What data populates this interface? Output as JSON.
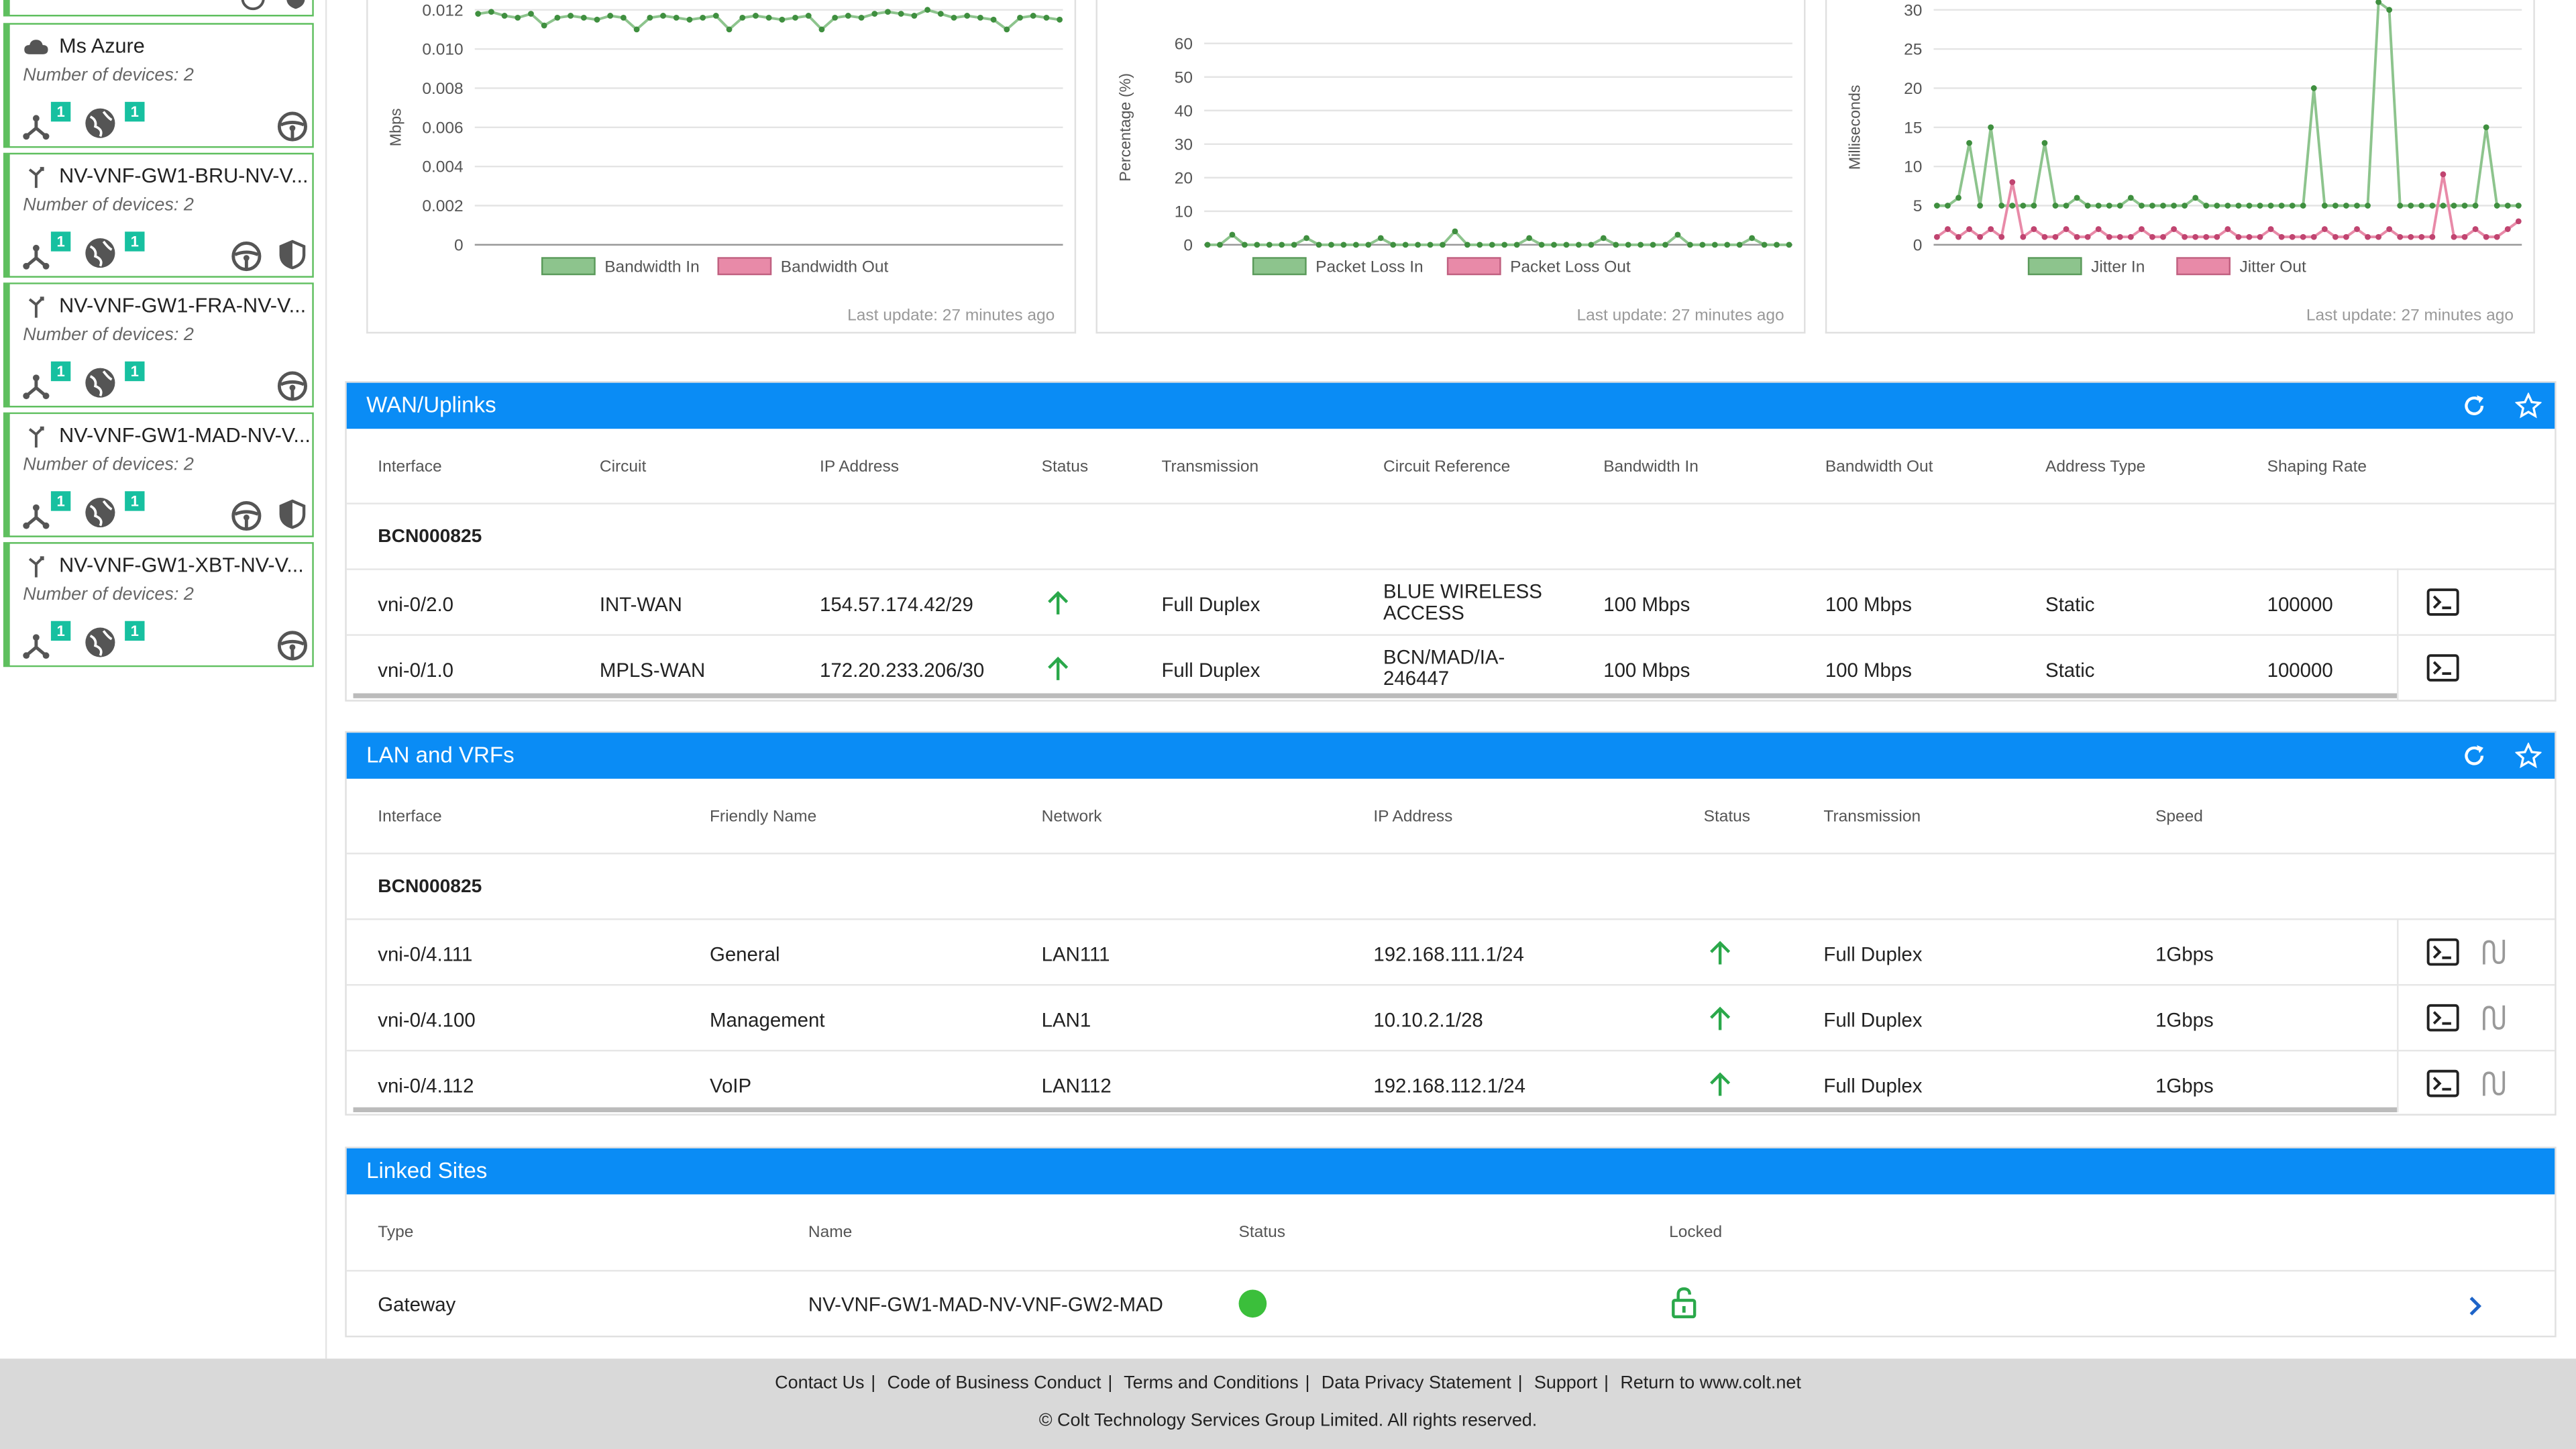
{
  "sidebar": {
    "devices_label": "Number of devices: 2",
    "badge_value": "1",
    "items": [
      {
        "name": "Ms Azure",
        "type": "cloud",
        "shield": false
      },
      {
        "name": "NV-VNF-GW1-BRU-NV-V...",
        "type": "gateway",
        "shield": true
      },
      {
        "name": "NV-VNF-GW1-FRA-NV-V...",
        "type": "gateway",
        "shield": false
      },
      {
        "name": "NV-VNF-GW1-MAD-NV-V...",
        "type": "gateway",
        "shield": true
      },
      {
        "name": "NV-VNF-GW1-XBT-NV-V...",
        "type": "gateway",
        "shield": false
      }
    ]
  },
  "charts": {
    "last_update": "Last update: 27 minutes ago",
    "colors": {
      "in": "#8dc48d",
      "out": "#e88aa8"
    }
  },
  "chart_data": [
    {
      "type": "line",
      "ylabel": "Mbps",
      "ylim": [
        0,
        0.012
      ],
      "yticks": [
        "0",
        "0.002",
        "0.004",
        "0.006",
        "0.008",
        "0.010",
        "0.012"
      ],
      "series": [
        {
          "name": "Bandwidth In",
          "values": [
            0.0118,
            0.0119,
            0.0117,
            0.0116,
            0.0118,
            0.0112,
            0.0116,
            0.0117,
            0.0116,
            0.0115,
            0.0117,
            0.0116,
            0.011,
            0.0116,
            0.0117,
            0.0116,
            0.0115,
            0.0116,
            0.0117,
            0.011,
            0.0116,
            0.0117,
            0.0116,
            0.0115,
            0.0116,
            0.0117,
            0.011,
            0.0116,
            0.0117,
            0.0116,
            0.0118,
            0.0119,
            0.0118,
            0.0117,
            0.012,
            0.0118,
            0.0116,
            0.0117,
            0.0116,
            0.0115,
            0.011,
            0.0116,
            0.0117,
            0.0116,
            0.0115
          ]
        },
        {
          "name": "Bandwidth Out",
          "values": []
        }
      ]
    },
    {
      "type": "line",
      "ylabel": "Percentage (%)",
      "ylim": [
        0,
        70
      ],
      "yticks": [
        "0",
        "10",
        "20",
        "30",
        "40",
        "50",
        "60"
      ],
      "series": [
        {
          "name": "Packet Loss In",
          "values": [
            0,
            0,
            3,
            0,
            0,
            0,
            0,
            0,
            2,
            0,
            0,
            0,
            0,
            0,
            2,
            0,
            0,
            0,
            0,
            0,
            4,
            0,
            0,
            0,
            0,
            0,
            2,
            0,
            0,
            0,
            0,
            0,
            2,
            0,
            0,
            0,
            0,
            0,
            3,
            0,
            0,
            0,
            0,
            0,
            2,
            0,
            0,
            0
          ]
        },
        {
          "name": "Packet Loss Out",
          "values": []
        }
      ]
    },
    {
      "type": "line",
      "ylabel": "Milliseconds",
      "ylim": [
        0,
        30
      ],
      "yticks": [
        "0",
        "5",
        "10",
        "15",
        "20",
        "25",
        "30"
      ],
      "series": [
        {
          "name": "Jitter In",
          "values": [
            5,
            5,
            6,
            13,
            5,
            15,
            5,
            5,
            5,
            5,
            13,
            5,
            5,
            6,
            5,
            5,
            5,
            5,
            6,
            5,
            5,
            5,
            5,
            5,
            6,
            5,
            5,
            5,
            5,
            5,
            5,
            5,
            5,
            5,
            5,
            20,
            5,
            5,
            5,
            5,
            5,
            31,
            30,
            5,
            5,
            5,
            5,
            5,
            5,
            5,
            5,
            15,
            5,
            5,
            5
          ]
        },
        {
          "name": "Jitter Out",
          "values": [
            1,
            2,
            1,
            2,
            1,
            2,
            1,
            8,
            1,
            2,
            1,
            1,
            2,
            1,
            1,
            2,
            1,
            1,
            1,
            2,
            1,
            1,
            2,
            1,
            1,
            1,
            1,
            2,
            1,
            1,
            1,
            2,
            1,
            1,
            1,
            1,
            2,
            1,
            1,
            2,
            1,
            1,
            2,
            1,
            1,
            1,
            1,
            9,
            1,
            1,
            2,
            1,
            1,
            2,
            3
          ]
        }
      ]
    }
  ],
  "wan": {
    "title": "WAN/Uplinks",
    "headers": [
      "Interface",
      "Circuit",
      "IP Address",
      "Status",
      "Transmission",
      "Circuit Reference",
      "Bandwidth In",
      "Bandwidth Out",
      "Address Type",
      "Shaping Rate"
    ],
    "group": "BCN000825",
    "rows": [
      {
        "interface": "vni-0/2.0",
        "circuit": "INT-WAN",
        "ip": "154.57.174.42/29",
        "transmission": "Full Duplex",
        "ref1": "BLUE WIRELESS",
        "ref2": "ACCESS",
        "bw_in": "100 Mbps",
        "bw_out": "100 Mbps",
        "addr_type": "Static",
        "shaping": "100000"
      },
      {
        "interface": "vni-0/1.0",
        "circuit": "MPLS-WAN",
        "ip": "172.20.233.206/30",
        "transmission": "Full Duplex",
        "ref1": "BCN/MAD/IA-",
        "ref2": "246447",
        "bw_in": "100 Mbps",
        "bw_out": "100 Mbps",
        "addr_type": "Static",
        "shaping": "100000"
      }
    ]
  },
  "lan": {
    "title": "LAN and VRFs",
    "headers": [
      "Interface",
      "Friendly Name",
      "Network",
      "IP Address",
      "Status",
      "Transmission",
      "Speed"
    ],
    "group": "BCN000825",
    "rows": [
      {
        "interface": "vni-0/4.111",
        "friendly": "General",
        "network": "LAN111",
        "ip": "192.168.111.1/24",
        "transmission": "Full Duplex",
        "speed": "1Gbps"
      },
      {
        "interface": "vni-0/4.100",
        "friendly": "Management",
        "network": "LAN1",
        "ip": "10.10.2.1/28",
        "transmission": "Full Duplex",
        "speed": "1Gbps"
      },
      {
        "interface": "vni-0/4.112",
        "friendly": "VoIP",
        "network": "LAN112",
        "ip": "192.168.112.1/24",
        "transmission": "Full Duplex",
        "speed": "1Gbps"
      }
    ]
  },
  "linked": {
    "title": "Linked Sites",
    "headers": [
      "Type",
      "Name",
      "Status",
      "Locked"
    ],
    "rows": [
      {
        "type": "Gateway",
        "name": "NV-VNF-GW1-MAD-NV-VNF-GW2-MAD"
      }
    ]
  },
  "footer": {
    "links": [
      "Contact Us",
      "Code of Business Conduct",
      "Terms and Conditions",
      "Data Privacy Statement",
      "Support",
      "Return to www.colt.net"
    ],
    "copyright": "© Colt Technology Services Group Limited. All rights reserved."
  }
}
